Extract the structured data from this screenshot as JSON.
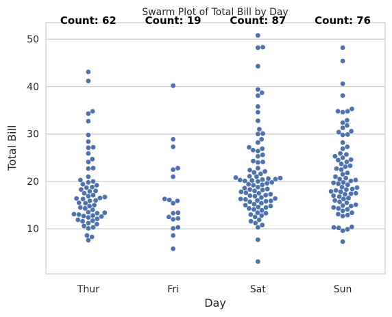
{
  "chart_data": {
    "type": "scatter",
    "subtype": "swarm",
    "title": "Swarm Plot of Total Bill by Day",
    "xlabel": "Day",
    "ylabel": "Total Bill",
    "categories": [
      "Thur",
      "Fri",
      "Sat",
      "Sun"
    ],
    "ylim": [
      0.5,
      53.5
    ],
    "yticks": [
      10,
      20,
      30,
      40,
      50
    ],
    "grid": true,
    "point_color": "#4c72b0",
    "annotations": [
      "Count: 62",
      "Count: 19",
      "Count: 87",
      "Count: 76"
    ],
    "values": {
      "Thur": [
        43.1,
        41.2,
        34.8,
        34.3,
        32.7,
        29.8,
        28.4,
        27.2,
        27.1,
        25.9,
        24.7,
        24.1,
        22.8,
        22.7,
        21.0,
        20.3,
        20.0,
        19.8,
        19.4,
        19.2,
        18.8,
        18.7,
        18.3,
        18.0,
        17.9,
        17.5,
        17.1,
        16.9,
        16.7,
        16.5,
        16.4,
        16.3,
        16.0,
        15.9,
        15.5,
        15.4,
        15.0,
        14.8,
        14.5,
        14.3,
        14.0,
        13.5,
        13.4,
        13.3,
        13.1,
        13.0,
        12.8,
        12.7,
        12.6,
        12.4,
        12.1,
        11.9,
        11.7,
        11.6,
        11.2,
        11.0,
        10.6,
        10.3,
        10.1,
        8.6,
        8.3,
        7.6
      ],
      "Fri": [
        40.2,
        28.9,
        27.3,
        22.8,
        22.5,
        21.0,
        16.3,
        16.1,
        15.9,
        15.4,
        13.4,
        13.3,
        12.5,
        12.2,
        12.0,
        10.3,
        10.1,
        8.6,
        5.8
      ],
      "Sat": [
        50.8,
        48.3,
        48.2,
        44.3,
        39.4,
        38.7,
        38.1,
        35.8,
        34.6,
        32.8,
        31.0,
        30.1,
        30.0,
        28.9,
        28.2,
        27.2,
        26.9,
        26.6,
        26.4,
        25.6,
        25.3,
        24.3,
        24.1,
        24.0,
        22.8,
        22.4,
        22.1,
        21.9,
        21.6,
        21.1,
        21.0,
        20.8,
        20.7,
        20.6,
        20.5,
        20.4,
        20.3,
        20.2,
        20.1,
        20.0,
        19.8,
        19.6,
        19.4,
        19.3,
        19.2,
        18.8,
        18.6,
        18.4,
        18.3,
        18.2,
        18.0,
        17.8,
        17.6,
        17.5,
        17.3,
        17.1,
        17.0,
        16.9,
        16.6,
        16.4,
        16.3,
        16.2,
        16.0,
        15.9,
        15.8,
        15.7,
        15.4,
        15.2,
        15.0,
        14.8,
        14.6,
        14.5,
        14.3,
        14.1,
        13.9,
        13.4,
        13.3,
        13.0,
        12.8,
        12.5,
        11.9,
        11.6,
        11.2,
        10.8,
        10.3,
        7.7,
        3.1
      ],
      "Sun": [
        48.2,
        45.4,
        40.6,
        38.1,
        35.3,
        34.8,
        34.8,
        34.6,
        32.9,
        32.4,
        31.8,
        31.3,
        30.6,
        30.4,
        29.9,
        29.8,
        28.2,
        27.3,
        26.9,
        25.9,
        25.7,
        25.3,
        25.0,
        24.6,
        24.5,
        24.1,
        23.7,
        23.3,
        23.1,
        22.7,
        22.5,
        21.8,
        21.5,
        21.0,
        20.7,
        20.5,
        20.3,
        20.1,
        19.8,
        19.7,
        19.5,
        19.3,
        18.8,
        18.7,
        18.4,
        18.3,
        18.1,
        17.9,
        17.8,
        17.5,
        17.4,
        17.3,
        17.0,
        16.8,
        16.5,
        16.3,
        16.0,
        15.7,
        15.5,
        15.1,
        14.9,
        14.8,
        14.5,
        14.3,
        14.1,
        13.8,
        13.4,
        13.1,
        12.9,
        12.7,
        10.4,
        10.3,
        10.2,
        9.9,
        9.6,
        7.3
      ]
    }
  }
}
